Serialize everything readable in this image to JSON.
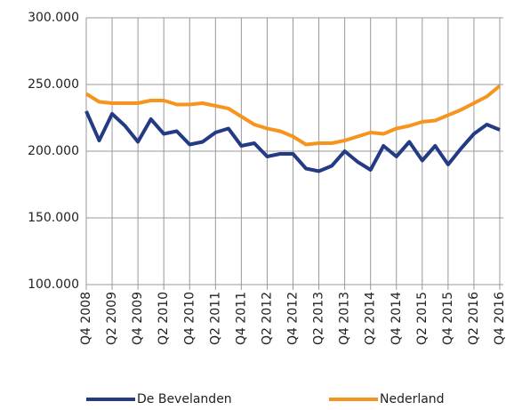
{
  "chart_data": {
    "type": "line",
    "categories": [
      "Q4 2008",
      null,
      "Q2 2009",
      null,
      "Q4 2009",
      null,
      "Q2 2010",
      null,
      "Q4 2010",
      null,
      "Q2 2011",
      null,
      "Q4 2011",
      null,
      "Q2 2012",
      null,
      "Q4 2012",
      null,
      "Q2 2013",
      null,
      "Q4 2013",
      null,
      "Q2 2014",
      null,
      "Q4 2014",
      null,
      "Q2 2015",
      null,
      "Q4 2015",
      null,
      "Q2 2016",
      null,
      "Q4 2016"
    ],
    "series": [
      {
        "name": "De Bevelanden",
        "color": "#233a85",
        "values": [
          230000,
          208000,
          228000,
          219000,
          207000,
          224000,
          213000,
          215000,
          205000,
          207000,
          214000,
          217000,
          204000,
          206000,
          196000,
          198000,
          198000,
          187000,
          185000,
          189000,
          200000,
          192000,
          186000,
          204000,
          196000,
          207000,
          193000,
          204000,
          190000,
          202000,
          213000,
          220000,
          216000
        ]
      },
      {
        "name": "Nederland",
        "color": "#f7941d",
        "values": [
          243000,
          237000,
          236000,
          236000,
          236000,
          238000,
          238000,
          235000,
          235000,
          236000,
          234000,
          232000,
          226000,
          220000,
          217000,
          215000,
          211000,
          205000,
          206000,
          206000,
          208000,
          211000,
          214000,
          213000,
          217000,
          219000,
          222000,
          223000,
          227000,
          231000,
          236000,
          241000,
          249000
        ]
      }
    ],
    "ylim": [
      100000,
      300000
    ],
    "yticks": [
      {
        "value": 100000,
        "label": "100.000"
      },
      {
        "value": 150000,
        "label": "150.000"
      },
      {
        "value": 200000,
        "label": "200.000"
      },
      {
        "value": 250000,
        "label": "250.000"
      },
      {
        "value": 300000,
        "label": "300.000"
      }
    ],
    "grid": true
  }
}
